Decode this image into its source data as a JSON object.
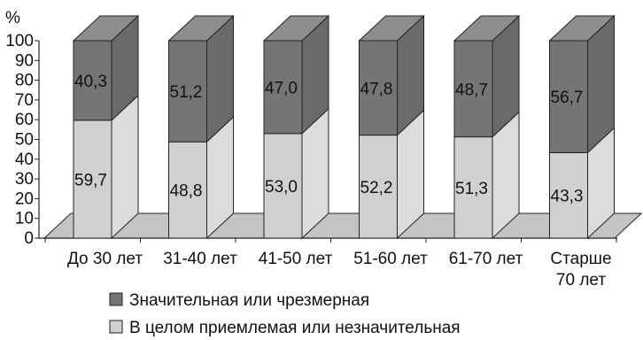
{
  "chart_data": {
    "type": "bar",
    "stacked": true,
    "style": "3d",
    "y_unit_label": "%",
    "ylim": [
      0,
      100
    ],
    "yticks": [
      0,
      10,
      20,
      30,
      40,
      50,
      60,
      70,
      80,
      90,
      100
    ],
    "categories": [
      [
        "До 30 лет"
      ],
      [
        "31-40 лет"
      ],
      [
        "41-50 лет"
      ],
      [
        "51-60 лет"
      ],
      [
        "61-70 лет"
      ],
      [
        "Старше",
        "70 лет"
      ]
    ],
    "series": [
      {
        "name": "В целом приемлемая или незначительная",
        "values": [
          59.7,
          48.8,
          53.0,
          52.2,
          51.3,
          43.3
        ],
        "labels": [
          "59,7",
          "48,8",
          "53,0",
          "52,2",
          "51,3",
          "43,3"
        ],
        "color": "#d0d0d0",
        "top_color": "#e6e6e6",
        "side_color": "#dcdcdc"
      },
      {
        "name": "Значительная или чрезмерная",
        "values": [
          40.3,
          51.2,
          47.0,
          47.8,
          48.7,
          56.7
        ],
        "labels": [
          "40,3",
          "51,2",
          "47,0",
          "47,8",
          "48,7",
          "56,7"
        ],
        "color": "#757575",
        "top_color": "#8e8e8e",
        "side_color": "#6a6a6a"
      }
    ],
    "legend_order": [
      1,
      0
    ],
    "legend_position": "bottom",
    "floor_color": "#c4c4c4"
  }
}
